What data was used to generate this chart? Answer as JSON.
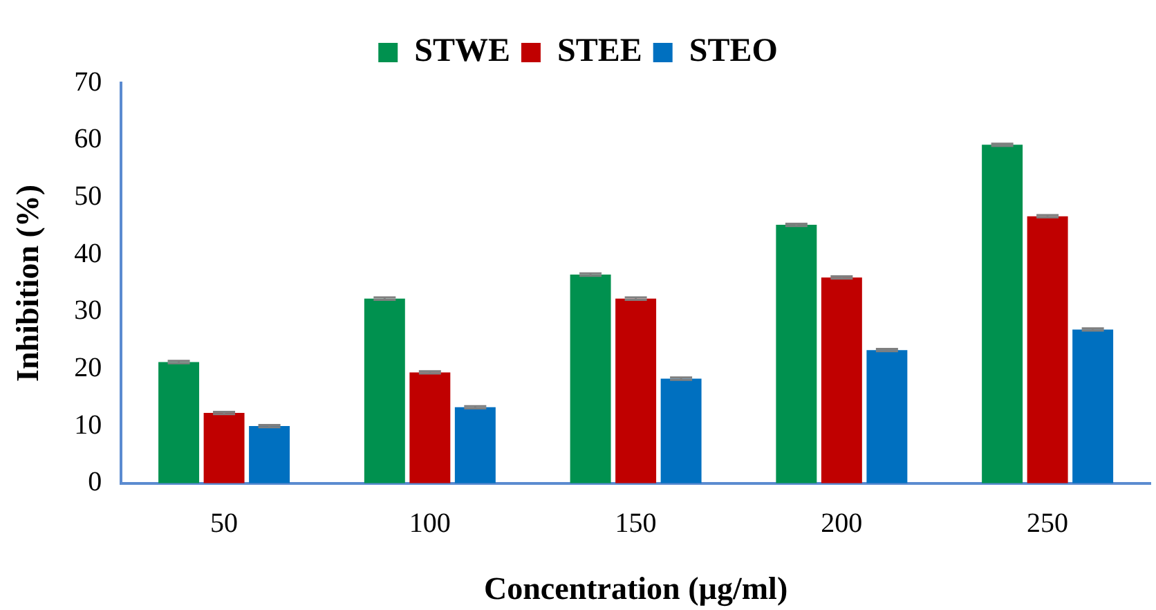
{
  "chart_data": {
    "type": "bar",
    "xlabel": "Concentration (µg/ml)",
    "ylabel": "Inhibition (%)",
    "categories": [
      "50",
      "100",
      "150",
      "200",
      "250"
    ],
    "series": [
      {
        "name": "STWE",
        "color": "#00914f",
        "values": [
          21.2,
          32.3,
          36.5,
          45.2,
          59.2
        ],
        "errors": [
          0.2,
          0.2,
          0.2,
          0.2,
          0.2
        ]
      },
      {
        "name": "STEE",
        "color": "#c00000",
        "values": [
          12.3,
          19.4,
          32.3,
          36.0,
          46.7
        ],
        "errors": [
          0.2,
          0.2,
          0.2,
          0.2,
          0.2
        ]
      },
      {
        "name": "STEO",
        "color": "#0070c0",
        "values": [
          10.0,
          13.3,
          18.3,
          23.3,
          26.9
        ],
        "errors": [
          0.2,
          0.2,
          0.2,
          0.2,
          0.2
        ]
      }
    ],
    "ylim": [
      0,
      70
    ],
    "yticks": [
      0,
      10,
      20,
      30,
      40,
      50,
      60,
      70
    ],
    "grid": false,
    "legend": "top"
  }
}
